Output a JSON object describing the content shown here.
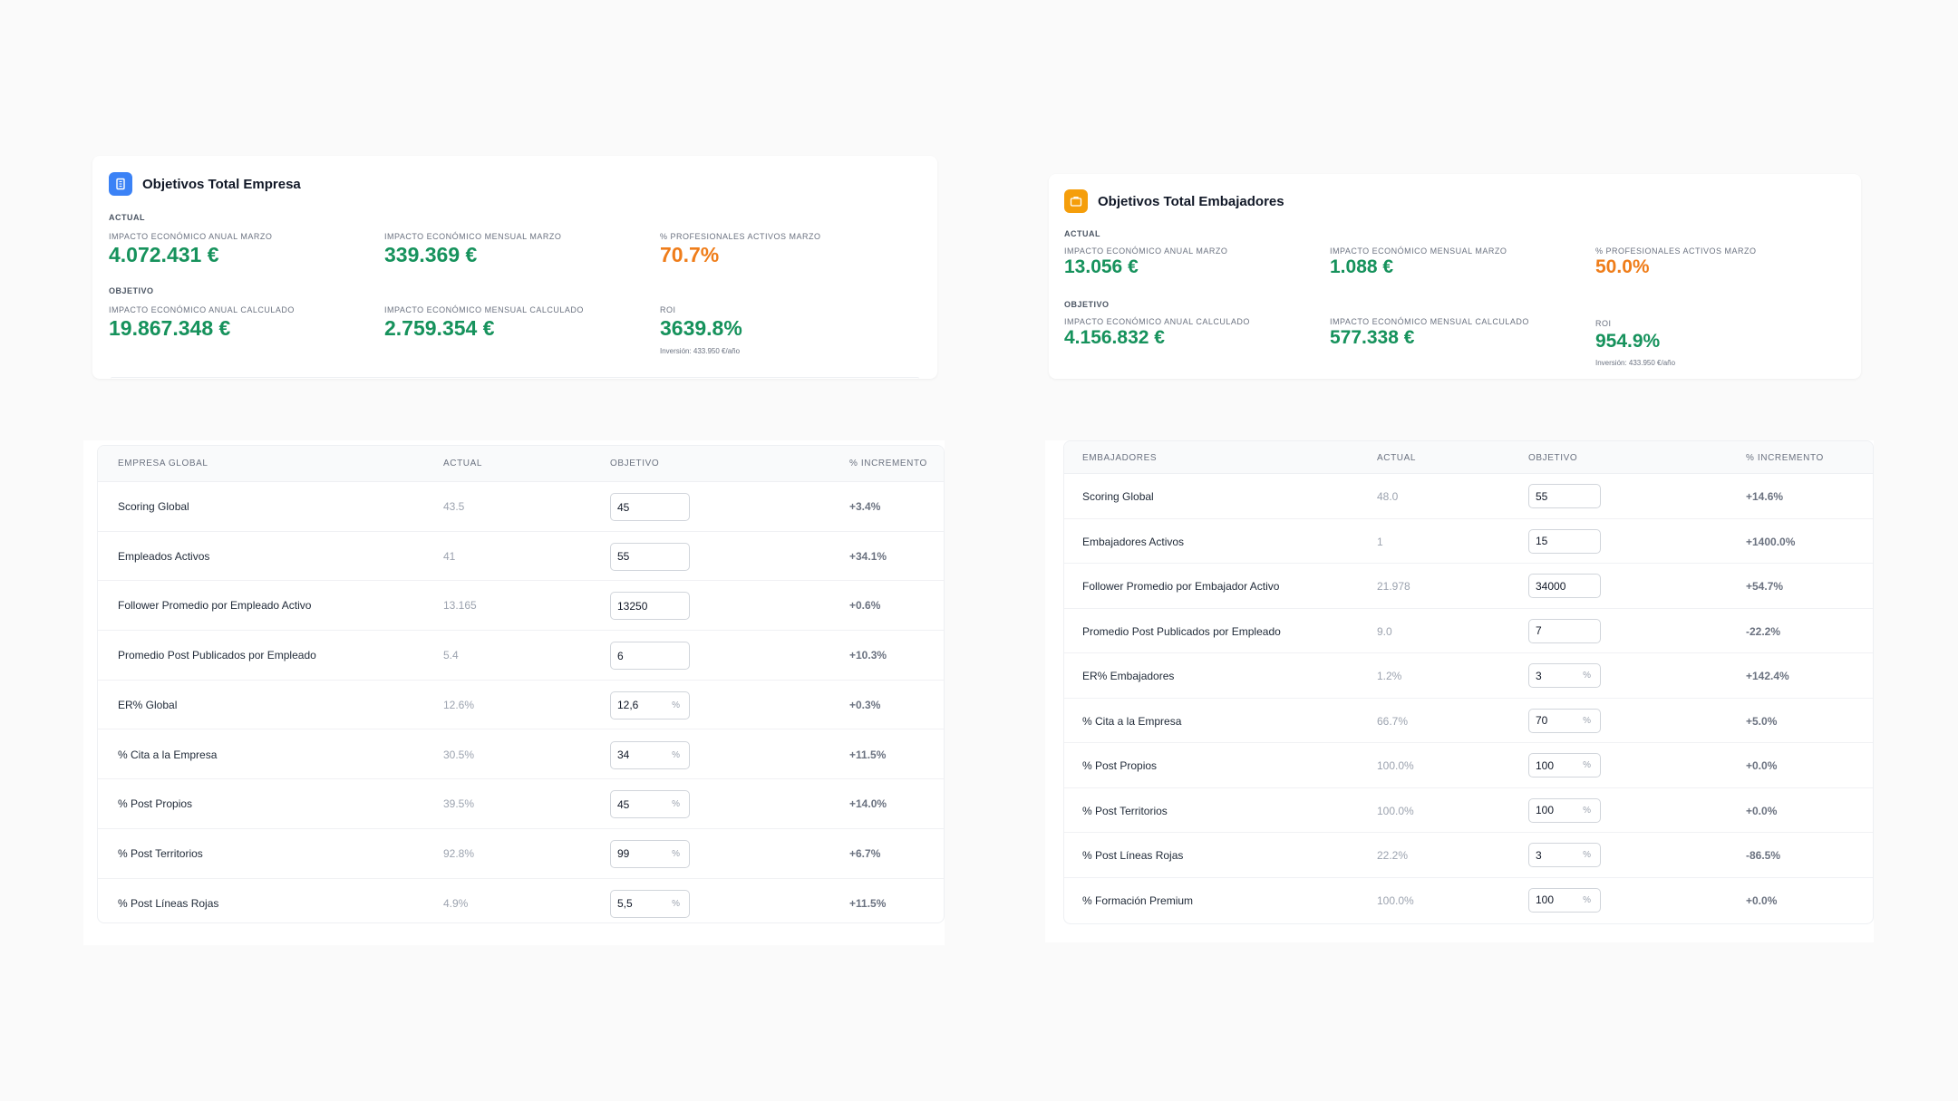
{
  "empresa_card": {
    "title": "Objetivos Total Empresa",
    "icon": "building-icon",
    "actual_label": "ACTUAL",
    "objetivo_label": "OBJETIVO",
    "actual": [
      {
        "label": "IMPACTO ECONÓMICO ANUAL MARZO",
        "value": "4.072.431 €",
        "color": "#16925c"
      },
      {
        "label": "IMPACTO ECONÓMICO MENSUAL MARZO",
        "value": "339.369 €",
        "color": "#16925c"
      },
      {
        "label": "% PROFESIONALES ACTIVOS MARZO",
        "value": "70.7%",
        "color": "#ef7d1a"
      }
    ],
    "objetivo": [
      {
        "label": "IMPACTO ECONÓMICO ANUAL CALCULADO",
        "value": "19.867.348 €"
      },
      {
        "label": "IMPACTO ECONÓMICO MENSUAL CALCULADO",
        "value": "2.759.354 €"
      },
      {
        "label": "ROI",
        "value": "3639.8%",
        "sub": "Inversión: 433.950 €/año"
      }
    ]
  },
  "embajadores_card": {
    "title": "Objetivos Total Embajadores",
    "icon": "briefcase-icon",
    "actual_label": "ACTUAL",
    "objetivo_label": "OBJETIVO",
    "actual": [
      {
        "label": "IMPACTO ECONÓMICO ANUAL MARZO",
        "value": "13.056 €",
        "color": "#16925c"
      },
      {
        "label": "IMPACTO ECONÓMICO MENSUAL MARZO",
        "value": "1.088 €",
        "color": "#16925c"
      },
      {
        "label": "% PROFESIONALES ACTIVOS MARZO",
        "value": "50.0%",
        "color": "#ef7d1a"
      }
    ],
    "objetivo": [
      {
        "label": "IMPACTO ECONÓMICO ANUAL CALCULADO",
        "value": "4.156.832 €"
      },
      {
        "label": "IMPACTO ECONÓMICO MENSUAL CALCULADO",
        "value": "577.338 €"
      },
      {
        "label": "ROI",
        "value": "954.9%",
        "sub": "Inversión: 433.950 €/año"
      }
    ]
  },
  "empresa_table": {
    "headers": [
      "EMPRESA GLOBAL",
      "ACTUAL",
      "OBJETIVO",
      "% INCREMENTO"
    ],
    "rows": [
      {
        "name": "Scoring Global",
        "actual": "43.5",
        "objetivo": "45",
        "pct": false,
        "inc": "+3.4%"
      },
      {
        "name": "Empleados Activos",
        "actual": "41",
        "objetivo": "55",
        "pct": false,
        "inc": "+34.1%"
      },
      {
        "name": "Follower Promedio por Empleado Activo",
        "actual": "13.165",
        "objetivo": "13250",
        "pct": false,
        "inc": "+0.6%"
      },
      {
        "name": "Promedio Post Publicados por Empleado",
        "actual": "5.4",
        "objetivo": "6",
        "pct": false,
        "inc": "+10.3%"
      },
      {
        "name": "ER% Global",
        "actual": "12.6%",
        "objetivo": "12,6",
        "pct": true,
        "inc": "+0.3%"
      },
      {
        "name": "% Cita a la Empresa",
        "actual": "30.5%",
        "objetivo": "34",
        "pct": true,
        "inc": "+11.5%"
      },
      {
        "name": "% Post Propios",
        "actual": "39.5%",
        "objetivo": "45",
        "pct": true,
        "inc": "+14.0%"
      },
      {
        "name": "% Post Territorios",
        "actual": "92.8%",
        "objetivo": "99",
        "pct": true,
        "inc": "+6.7%"
      },
      {
        "name": "% Post Líneas Rojas",
        "actual": "4.9%",
        "objetivo": "5,5",
        "pct": true,
        "inc": "+11.5%"
      }
    ]
  },
  "embajadores_table": {
    "headers": [
      "EMBAJADORES",
      "ACTUAL",
      "OBJETIVO",
      "% INCREMENTO"
    ],
    "rows": [
      {
        "name": "Scoring Global",
        "actual": "48.0",
        "objetivo": "55",
        "pct": false,
        "inc": "+14.6%"
      },
      {
        "name": "Embajadores Activos",
        "actual": "1",
        "objetivo": "15",
        "pct": false,
        "inc": "+1400.0%"
      },
      {
        "name": "Follower Promedio por Embajador Activo",
        "actual": "21.978",
        "objetivo": "34000",
        "pct": false,
        "inc": "+54.7%"
      },
      {
        "name": "Promedio Post Publicados por Empleado",
        "actual": "9.0",
        "objetivo": "7",
        "pct": false,
        "inc": "-22.2%"
      },
      {
        "name": "ER% Embajadores",
        "actual": "1.2%",
        "objetivo": "3",
        "pct": true,
        "inc": "+142.4%"
      },
      {
        "name": "% Cita a la Empresa",
        "actual": "66.7%",
        "objetivo": "70",
        "pct": true,
        "inc": "+5.0%"
      },
      {
        "name": "% Post Propios",
        "actual": "100.0%",
        "objetivo": "100",
        "pct": true,
        "inc": "+0.0%"
      },
      {
        "name": "% Post Territorios",
        "actual": "100.0%",
        "objetivo": "100",
        "pct": true,
        "inc": "+0.0%"
      },
      {
        "name": "% Post Líneas Rojas",
        "actual": "22.2%",
        "objetivo": "3",
        "pct": true,
        "inc": "-86.5%"
      },
      {
        "name": "% Formación Premium",
        "actual": "100.0%",
        "objetivo": "100",
        "pct": true,
        "inc": "+0.0%"
      }
    ],
    "pct_suffix": "%"
  }
}
